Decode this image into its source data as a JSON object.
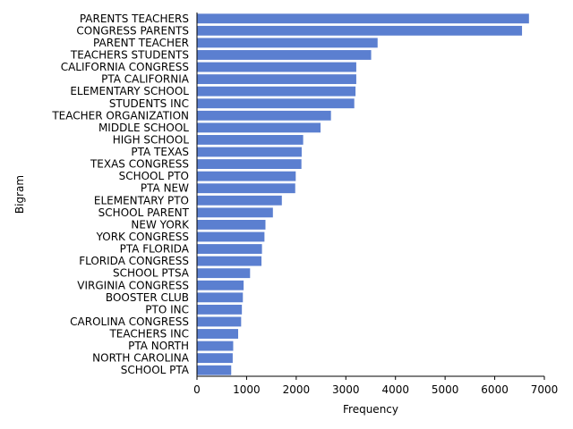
{
  "chart_data": {
    "type": "bar",
    "orientation": "horizontal",
    "xlabel": "Frequency",
    "ylabel": "Bigram",
    "xlim": [
      0,
      7000
    ],
    "xticks": [
      0,
      1000,
      2000,
      3000,
      4000,
      5000,
      6000,
      7000
    ],
    "bar_color": "#5b7fd0",
    "grid": false,
    "categories": [
      "PARENTS TEACHERS",
      "CONGRESS PARENTS",
      "PARENT TEACHER",
      "TEACHERS STUDENTS",
      "CALIFORNIA CONGRESS",
      "PTA CALIFORNIA",
      "ELEMENTARY SCHOOL",
      "STUDENTS INC",
      "TEACHER ORGANIZATION",
      "MIDDLE SCHOOL",
      "HIGH SCHOOL",
      "PTA TEXAS",
      "TEXAS CONGRESS",
      "SCHOOL PTO",
      "PTA NEW",
      "ELEMENTARY PTO",
      "SCHOOL PARENT",
      "NEW YORK",
      "YORK CONGRESS",
      "PTA FLORIDA",
      "FLORIDA CONGRESS",
      "SCHOOL PTSA",
      "VIRGINIA CONGRESS",
      "BOOSTER CLUB",
      "PTO INC",
      "CAROLINA CONGRESS",
      "TEACHERS INC",
      "PTA NORTH",
      "NORTH CAROLINA",
      "SCHOOL PTA"
    ],
    "values": [
      6690,
      6550,
      3640,
      3510,
      3210,
      3210,
      3195,
      3170,
      2700,
      2490,
      2140,
      2110,
      2105,
      1990,
      1980,
      1710,
      1530,
      1380,
      1360,
      1310,
      1300,
      1070,
      940,
      925,
      905,
      890,
      830,
      730,
      720,
      690
    ]
  }
}
